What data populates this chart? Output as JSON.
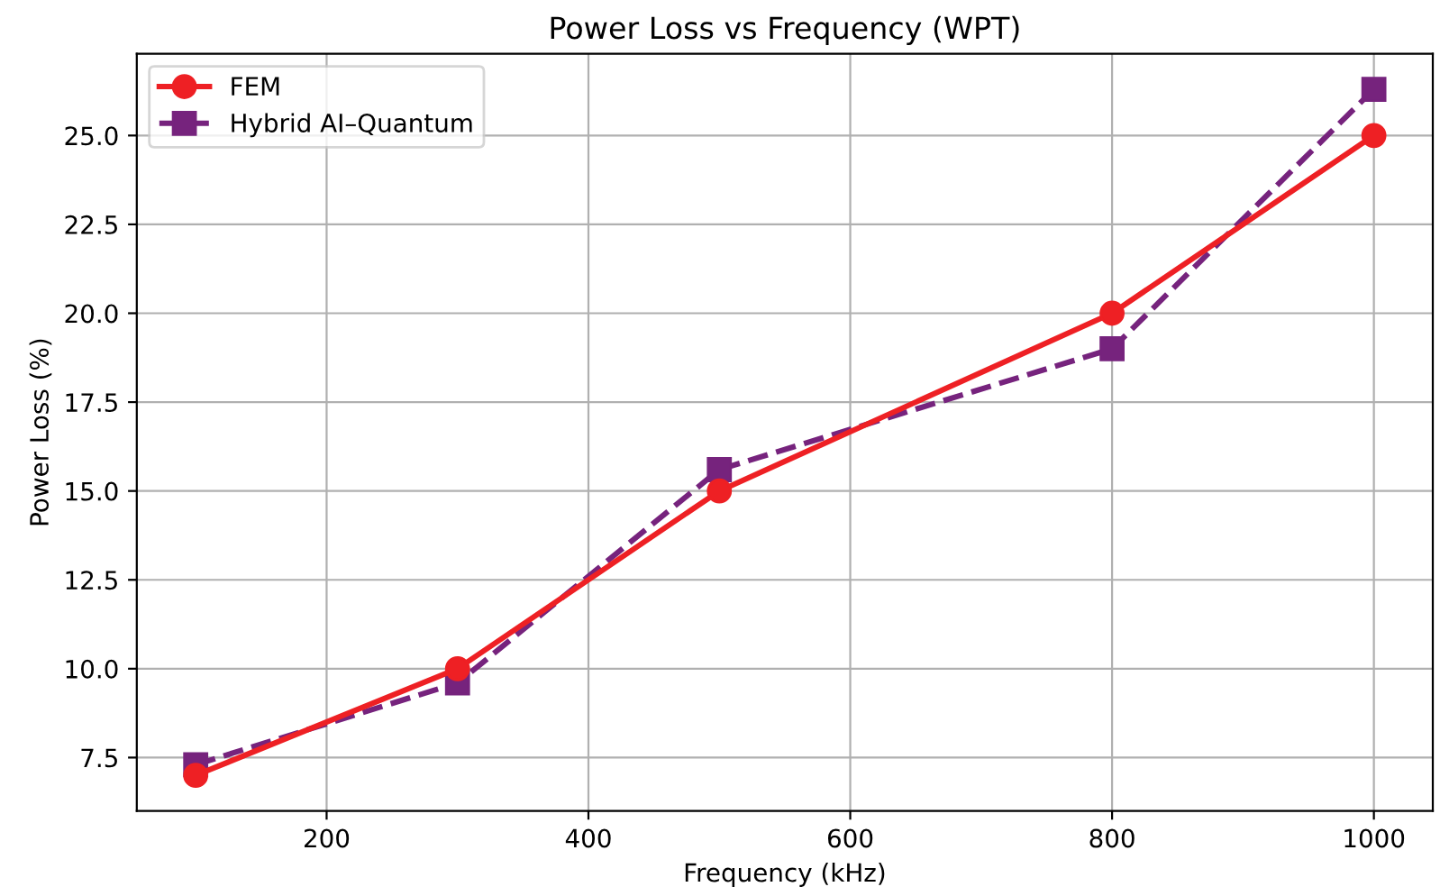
{
  "chart_data": {
    "type": "line",
    "title": "Power Loss vs Frequency (WPT)",
    "xlabel": "Frequency (kHz)",
    "ylabel": "Power Loss (%)",
    "x": [
      100,
      300,
      500,
      800,
      1000
    ],
    "series": [
      {
        "name": "FEM",
        "color": "#ee2024",
        "values": [
          7.0,
          10.0,
          15.0,
          20.0,
          25.0
        ],
        "marker": "circle",
        "line_style": "solid"
      },
      {
        "name": "Hybrid AI–Quantum",
        "color": "#76237d",
        "values": [
          7.3,
          9.6,
          15.6,
          19.0,
          26.3
        ],
        "marker": "square",
        "line_style": "dashed"
      }
    ],
    "xlim": [
      55,
      1045
    ],
    "ylim": [
      6.0,
      27.3
    ],
    "xticks": [
      200,
      400,
      600,
      800,
      1000
    ],
    "yticks": [
      {
        "value": 7.5,
        "label": "7.5"
      },
      {
        "value": 10,
        "label": "10.0"
      },
      {
        "value": 12.5,
        "label": "12.5"
      },
      {
        "value": 15,
        "label": "15.0"
      },
      {
        "value": 17.5,
        "label": "17.5"
      },
      {
        "value": 20,
        "label": "20.0"
      },
      {
        "value": 22.5,
        "label": "22.5"
      },
      {
        "value": 25,
        "label": "25.0"
      }
    ],
    "grid": true,
    "legend": "top left"
  }
}
